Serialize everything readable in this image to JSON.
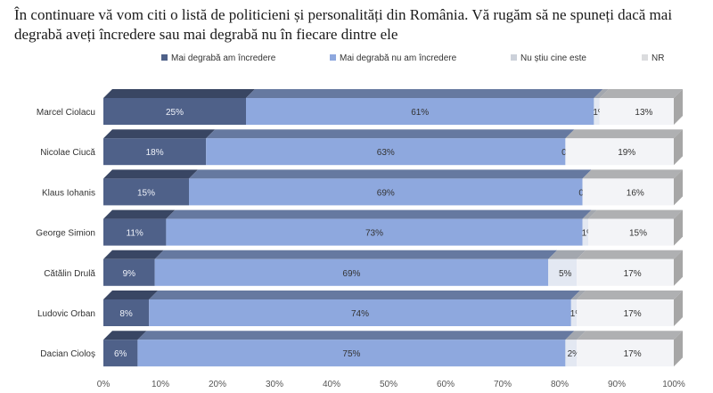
{
  "chart_data": {
    "type": "bar",
    "orientation": "horizontal",
    "stacked": true,
    "title": "În continuare vă vom citi o listă de politicieni și personalități din România. Vă rugăm să ne spuneți dacă mai degrabă aveți încredere sau mai degrabă nu în fiecare dintre ele",
    "categories": [
      "Marcel Ciolacu",
      "Nicolae Ciucă",
      "Klaus Iohanis",
      "George Simion",
      "Cătălin Drulă",
      "Ludovic Orban",
      "Dacian Cioloș"
    ],
    "series": [
      {
        "name": "Mai degrabă am încredere",
        "color": "#4f6189",
        "values": [
          25,
          18,
          15,
          11,
          9,
          8,
          6
        ]
      },
      {
        "name": "Mai degrabă nu am încredere",
        "color": "#8ea8de",
        "values": [
          61,
          63,
          69,
          73,
          69,
          74,
          75
        ]
      },
      {
        "name": "Nu știu cine este",
        "color": "#e3e8f2",
        "values": [
          1,
          0,
          0,
          1,
          5,
          1,
          2
        ]
      },
      {
        "name": "NR",
        "color": "#f3f4f7",
        "values": [
          13,
          19,
          16,
          15,
          17,
          17,
          17
        ]
      }
    ],
    "data_labels": [
      [
        "25%",
        "61%",
        "1%",
        "13%"
      ],
      [
        "18%",
        "63%",
        "0%",
        "19%"
      ],
      [
        "15%",
        "69%",
        "0%",
        "16%"
      ],
      [
        "11%",
        "73%",
        "1%",
        "15%"
      ],
      [
        "9%",
        "69%",
        "5%",
        "17%"
      ],
      [
        "8%",
        "74%",
        "1%",
        "17%"
      ],
      [
        "6%",
        "75%",
        "2%",
        "17%"
      ]
    ],
    "xlim": [
      0,
      100
    ],
    "xticks": [
      "0%",
      "10%",
      "20%",
      "30%",
      "40%",
      "50%",
      "60%",
      "70%",
      "80%",
      "90%",
      "100%"
    ],
    "legend_position": "top",
    "grid": false,
    "style": "3d"
  }
}
